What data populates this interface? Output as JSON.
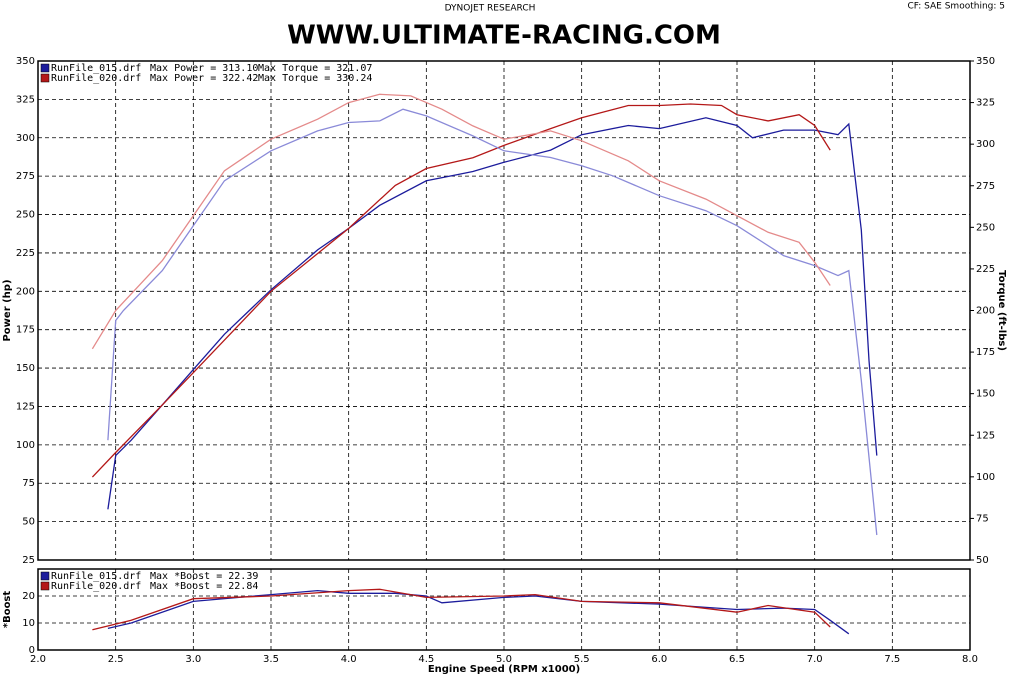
{
  "header": {
    "left": "DYNOJET RESEARCH",
    "right": "CF: SAE  Smoothing: 5"
  },
  "chart_data": [
    {
      "type": "line",
      "title": "WWW.ULTIMATE-RACING.COM",
      "ylabel": "Power (hp)",
      "y2label": "Torque (ft-lbs)",
      "xlim": [
        2,
        8
      ],
      "xticks": [
        2,
        2.5,
        3,
        3.5,
        4,
        4.5,
        5,
        5.5,
        6,
        6.5,
        7,
        7.5,
        8
      ],
      "ylim": [
        25,
        350
      ],
      "yticks": [
        25,
        50,
        75,
        100,
        125,
        150,
        175,
        200,
        225,
        250,
        275,
        300,
        325,
        350
      ],
      "y2lim": [
        50,
        350
      ],
      "y2ticks": [
        50,
        75,
        100,
        125,
        150,
        175,
        200,
        225,
        250,
        275,
        300,
        325,
        350
      ],
      "grid": true,
      "series": [
        {
          "name": "RunFile_015.drf",
          "label": "Max Power = 313.10",
          "color": "#1c1c9c",
          "x": [
            2.45,
            2.5,
            2.6,
            2.8,
            3.0,
            3.2,
            3.5,
            3.8,
            4.0,
            4.2,
            4.5,
            4.7,
            4.8,
            5.0,
            5.3,
            5.5,
            5.8,
            6.0,
            6.3,
            6.5,
            6.6,
            6.8,
            7.0,
            7.15,
            7.22,
            7.3,
            7.35,
            7.4
          ],
          "values": [
            58,
            93,
            103,
            126,
            149,
            172,
            201,
            227,
            241,
            256,
            272,
            276,
            278,
            284,
            292,
            302,
            308,
            306,
            313,
            308,
            300,
            305,
            305,
            302,
            309,
            240,
            155,
            93
          ]
        },
        {
          "name": "RunFile_020.drf",
          "label": "Max Power = 322.42",
          "color": "#b41818",
          "x": [
            2.35,
            2.5,
            2.8,
            3.0,
            3.5,
            4.0,
            4.3,
            4.5,
            4.8,
            5.0,
            5.3,
            5.5,
            5.8,
            6.0,
            6.2,
            6.4,
            6.5,
            6.7,
            6.9,
            7.0,
            7.1
          ],
          "values": [
            79,
            95,
            126,
            147,
            200,
            241,
            269,
            280,
            287,
            295,
            306,
            313,
            321,
            321,
            322,
            321,
            315,
            311,
            315,
            308,
            292
          ]
        },
        {
          "label": "Max Torque = 321.07",
          "color": "#8a8ad8",
          "axis": "y2",
          "x": [
            2.45,
            2.5,
            2.55,
            2.8,
            3.0,
            3.2,
            3.5,
            3.8,
            4.0,
            4.2,
            4.35,
            4.5,
            4.8,
            5.0,
            5.3,
            5.5,
            5.7,
            6.0,
            6.3,
            6.5,
            6.8,
            7.0,
            7.15,
            7.22,
            7.3,
            7.4
          ],
          "values": [
            122,
            194,
            200,
            224,
            251,
            278,
            296,
            308,
            313,
            314,
            321,
            317,
            305,
            296,
            292,
            287,
            281,
            269,
            260,
            251,
            233,
            227,
            221,
            224,
            158,
            65
          ]
        },
        {
          "label": "Max Torque = 330.24",
          "color": "#e48a8a",
          "axis": "y2",
          "x": [
            2.35,
            2.5,
            2.8,
            3.0,
            3.2,
            3.5,
            3.8,
            4.0,
            4.2,
            4.4,
            4.6,
            4.8,
            5.0,
            5.3,
            5.5,
            5.8,
            6.0,
            6.3,
            6.5,
            6.7,
            6.9,
            7.0,
            7.1
          ],
          "values": [
            177,
            200,
            230,
            257,
            284,
            303,
            315,
            325,
            330,
            329,
            321,
            311,
            303,
            308,
            302,
            290,
            278,
            267,
            257,
            247,
            241,
            229,
            215
          ]
        }
      ]
    },
    {
      "type": "line",
      "ylabel": "*Boost",
      "xlabel": "Engine Speed (RPM x1000)",
      "xlim": [
        2,
        8
      ],
      "xticks": [
        {
          "value": 2,
          "label": "2.0"
        },
        {
          "value": 2.5,
          "label": "2.5"
        },
        {
          "value": 3,
          "label": "3.0"
        },
        {
          "value": 3.5,
          "label": "3.5"
        },
        {
          "value": 4,
          "label": "4.0"
        },
        {
          "value": 4.5,
          "label": "4.5"
        },
        {
          "value": 5,
          "label": "5.0"
        },
        {
          "value": 5.5,
          "label": "5.5"
        },
        {
          "value": 6,
          "label": "6.0"
        },
        {
          "value": 6.5,
          "label": "6.5"
        },
        {
          "value": 7,
          "label": "7.0"
        },
        {
          "value": 7.5,
          "label": "7.5"
        },
        {
          "value": 8,
          "label": "8.0"
        }
      ],
      "ylim": [
        0,
        30
      ],
      "yticks": [
        0,
        10,
        20
      ],
      "grid": true,
      "series": [
        {
          "name": "RunFile_015.drf",
          "label": "Max *Boost = 22.39",
          "color": "#1c1c9c",
          "x": [
            2.45,
            2.6,
            3.0,
            3.5,
            3.8,
            4.0,
            4.3,
            4.5,
            4.6,
            5.0,
            5.2,
            5.5,
            6.0,
            6.5,
            6.8,
            7.0,
            7.1,
            7.22
          ],
          "values": [
            8,
            10,
            18,
            20.5,
            22,
            21,
            21,
            20,
            17.5,
            19.5,
            20,
            18,
            17,
            15,
            15.5,
            15,
            11,
            6
          ]
        },
        {
          "name": "RunFile_020.drf",
          "label": "Max *Boost = 22.84",
          "color": "#b41818",
          "x": [
            2.35,
            2.6,
            3.0,
            3.5,
            4.0,
            4.2,
            4.5,
            5.0,
            5.2,
            5.5,
            6.0,
            6.5,
            6.7,
            7.0,
            7.1
          ],
          "values": [
            7.5,
            11,
            19,
            20,
            22,
            22.5,
            19.5,
            20,
            20.5,
            18,
            17.5,
            14,
            16.5,
            14,
            8.5
          ]
        }
      ]
    }
  ]
}
